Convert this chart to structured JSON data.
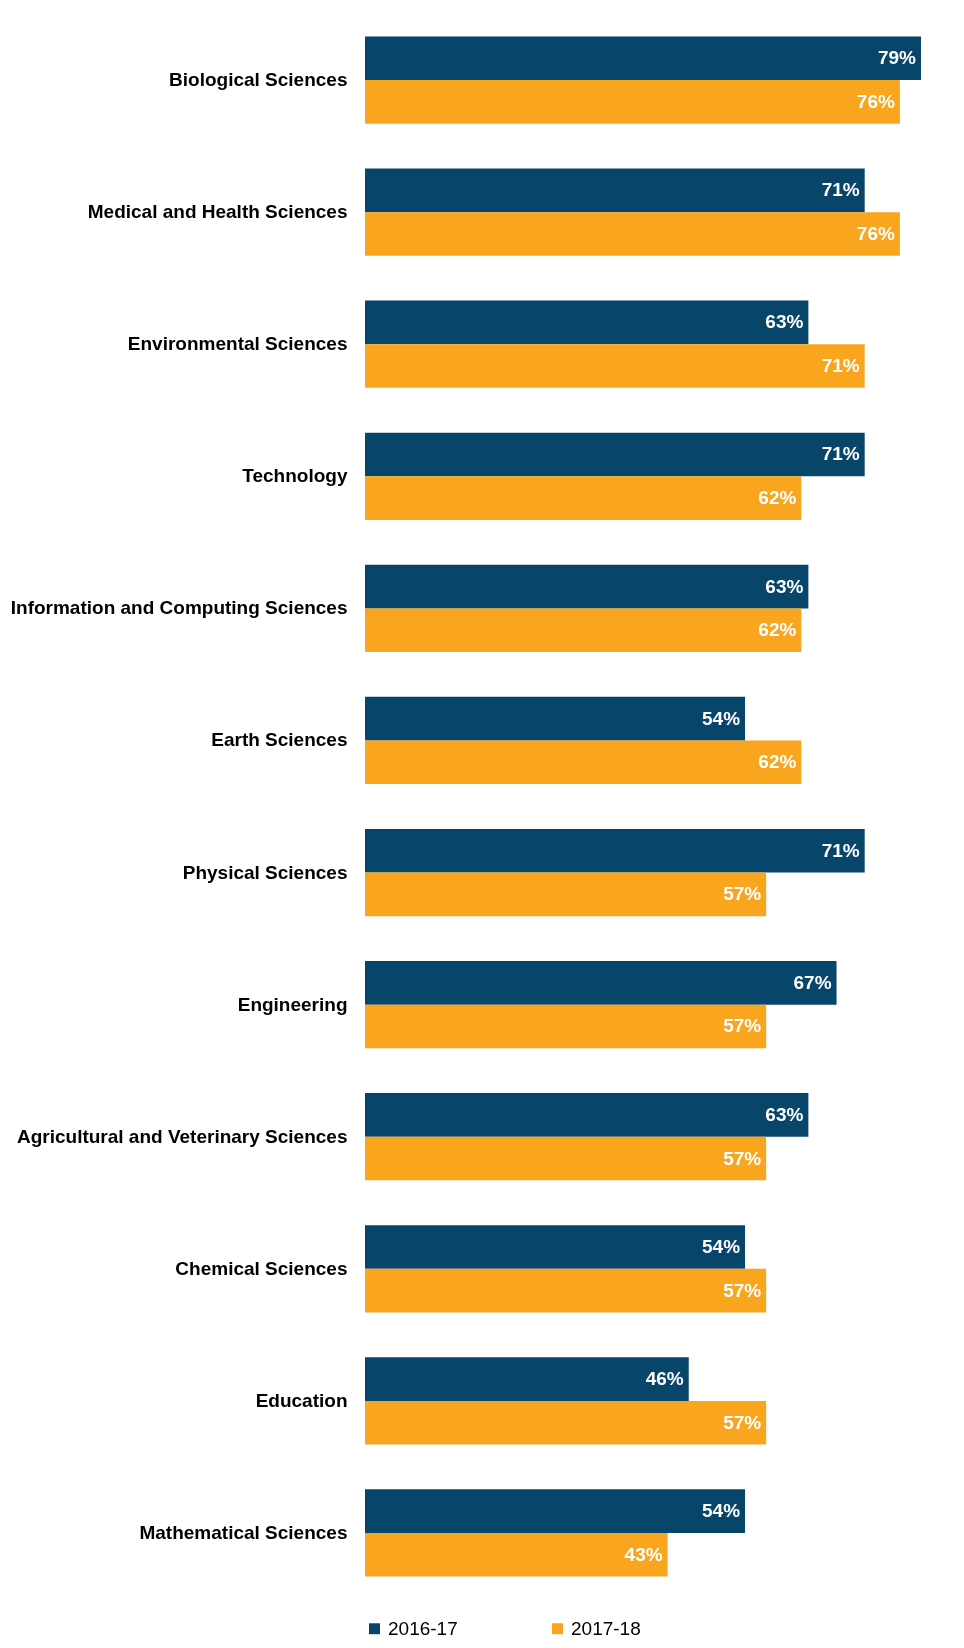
{
  "chart_data": {
    "type": "bar",
    "orientation": "horizontal",
    "legend": "bottom",
    "categories": [
      "Biological Sciences",
      "Medical and Health Sciences",
      "Environmental Sciences",
      "Technology",
      "Information and Computing Sciences",
      "Earth Sciences",
      "Physical Sciences",
      "Engineering",
      "Agricultural and Veterinary Sciences",
      "Chemical Sciences",
      "Education",
      "Mathematical Sciences"
    ],
    "series": [
      {
        "name": "2016-17",
        "color": "#08456b",
        "values": [
          79,
          71,
          63,
          71,
          63,
          54,
          71,
          67,
          63,
          54,
          46,
          54
        ],
        "value_labels": [
          "79%",
          "71%",
          "63%",
          "71%",
          "63%",
          "54%",
          "71%",
          "67%",
          "63%",
          "54%",
          "46%",
          "54%"
        ]
      },
      {
        "name": "2017-18",
        "color": "#f9a61e",
        "values": [
          76,
          76,
          71,
          62,
          62,
          62,
          57,
          57,
          57,
          57,
          57,
          43
        ],
        "value_labels": [
          "76%",
          "76%",
          "71%",
          "62%",
          "62%",
          "62%",
          "57%",
          "57%",
          "57%",
          "57%",
          "57%",
          "43%"
        ]
      }
    ]
  }
}
